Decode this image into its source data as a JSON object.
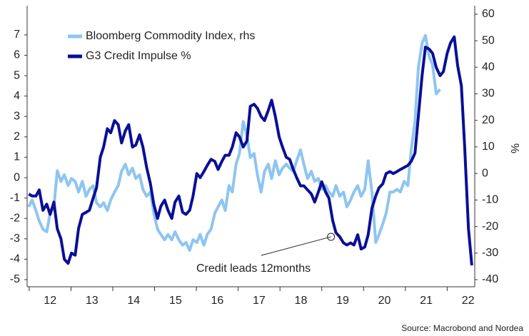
{
  "chart_data": {
    "type": "line",
    "series": [
      {
        "name": "Bloomberg Commodity Index, rhs",
        "color": "#8ec5f0",
        "axis": "y2",
        "values": [
          -12.6,
          -10,
          -14,
          -18,
          -21,
          -22,
          -15,
          -12.6,
          1,
          -3,
          -0.5,
          -4.6,
          -1.9,
          -3,
          -7,
          -3,
          -8.6,
          -6,
          -4.6,
          -11,
          -12.6,
          -11,
          -14,
          -10,
          -7,
          -4.6,
          0.8,
          3.5,
          -0.5,
          2,
          -1.9,
          -0.5,
          -6,
          -8.6,
          -7,
          -15,
          -21,
          -23,
          -25,
          -23,
          -25,
          -22,
          -25,
          -27,
          -26,
          -29,
          -25,
          -26,
          -23,
          -27,
          -23,
          -21,
          -15,
          -12.6,
          -10,
          -14,
          -4.6,
          -7,
          3.5,
          7.5,
          19.6,
          14.2,
          6,
          7.5,
          -0.5,
          -7,
          0.8,
          3.5,
          -1.9,
          4.8,
          -0.5,
          2,
          3.5,
          2,
          0.8,
          4.8,
          8.9,
          3.5,
          -1.9,
          0.8,
          -3,
          -1.9,
          -6,
          -4.6,
          -7,
          -8.6,
          -4.6,
          -8.6,
          -7,
          -12.6,
          -10,
          -7,
          -4.6,
          -8.6,
          -6,
          4.8,
          -7,
          -26,
          -23,
          -19,
          -15,
          -7,
          -7,
          -6,
          -7,
          -3,
          -4.6,
          8.9,
          19.6,
          39.8,
          49,
          52,
          44,
          41,
          30,
          31.7,
          null,
          null,
          null,
          null,
          null,
          null,
          null,
          null,
          null
        ]
      },
      {
        "name": "G3 Credit Impulse %",
        "color": "#0a0f96",
        "axis": "y",
        "values": [
          -0.8,
          -0.9,
          -0.9,
          -0.6,
          -1.6,
          -1.3,
          -1.8,
          -1.2,
          -2.5,
          -3.0,
          -4.0,
          -4.2,
          -3.7,
          -3.8,
          -2.5,
          -1.8,
          -1.7,
          -1.6,
          -1.0,
          -0.5,
          1.0,
          1.5,
          2.4,
          2.2,
          2.8,
          2.6,
          1.7,
          2.3,
          2.6,
          1.5,
          1.6,
          2.1,
          1.5,
          0.5,
          -0.3,
          -1.3,
          -2.0,
          -1.4,
          -1.1,
          -1.6,
          -2.0,
          -1.2,
          -0.9,
          -1.7,
          -1.8,
          -1.6,
          -0.9,
          0.2,
          0.0,
          0.3,
          0.6,
          0.9,
          0.8,
          0.4,
          0.8,
          1.1,
          1.1,
          1.5,
          2.2,
          2.0,
          1.5,
          1.8,
          3.5,
          3.6,
          3.4,
          3.0,
          2.8,
          3.3,
          3.8,
          3.0,
          2.0,
          1.5,
          1.0,
          0.9,
          0.4,
          0.0,
          -0.4,
          -0.4,
          -0.6,
          -0.8,
          -1.2,
          -0.7,
          -0.2,
          -0.7,
          -1.0,
          -2.1,
          -2.7,
          -2.9,
          -3.2,
          -3.3,
          -3.2,
          -3.3,
          -2.8,
          -3.5,
          -3.4,
          -2.8,
          -1.5,
          -0.9,
          -0.5,
          -0.3,
          0.2,
          0.3,
          0.2,
          0.3,
          0.4,
          0.5,
          0.6,
          0.8,
          1.2,
          3.0,
          5.0,
          6.4,
          6.3,
          6.1,
          5.4,
          5.0,
          5.2,
          6.1,
          6.6,
          6.9,
          5.5,
          4.5,
          1.5,
          -2.5,
          -4.3
        ]
      }
    ],
    "x": [
      2011.99,
      2012.07,
      2012.16,
      2012.24,
      2012.33,
      2012.42,
      2012.5,
      2012.59,
      2012.67,
      2012.76,
      2012.84,
      2012.93,
      2013.01,
      2013.1,
      2013.18,
      2013.27,
      2013.36,
      2013.44,
      2013.53,
      2013.61,
      2013.7,
      2013.78,
      2013.87,
      2013.95,
      2014.04,
      2014.13,
      2014.21,
      2014.3,
      2014.38,
      2014.47,
      2014.55,
      2014.64,
      2014.72,
      2014.81,
      2014.9,
      2014.98,
      2015.07,
      2015.15,
      2015.24,
      2015.32,
      2015.41,
      2015.49,
      2015.58,
      2015.67,
      2015.75,
      2015.84,
      2015.92,
      2016.01,
      2016.09,
      2016.18,
      2016.26,
      2016.35,
      2016.44,
      2016.52,
      2016.61,
      2016.69,
      2016.78,
      2016.86,
      2016.95,
      2017.03,
      2017.12,
      2017.21,
      2017.29,
      2017.38,
      2017.46,
      2017.55,
      2017.63,
      2017.72,
      2017.8,
      2017.89,
      2017.98,
      2018.06,
      2018.15,
      2018.23,
      2018.32,
      2018.4,
      2018.49,
      2018.57,
      2018.66,
      2018.75,
      2018.83,
      2018.92,
      2019.0,
      2019.09,
      2019.17,
      2019.26,
      2019.34,
      2019.43,
      2019.52,
      2019.6,
      2019.69,
      2019.77,
      2019.86,
      2019.94,
      2020.03,
      2020.11,
      2020.2,
      2020.29,
      2020.37,
      2020.46,
      2020.54,
      2020.63,
      2020.71,
      2020.8,
      2020.88,
      2020.97,
      2021.06,
      2021.14,
      2021.23,
      2021.31,
      2021.4,
      2021.48,
      2021.57,
      2021.65,
      2021.74,
      2021.83,
      2021.91,
      2022.0,
      2022.08,
      2022.17,
      2022.25,
      2022.34,
      2022.42,
      2022.51,
      2022.59
    ],
    "xlim": [
      2011.95,
      2022.66
    ],
    "xticks": [
      {
        "value": 2012,
        "label": "12"
      },
      {
        "value": 2013,
        "label": "13"
      },
      {
        "value": 2014,
        "label": "14"
      },
      {
        "value": 2015,
        "label": "15"
      },
      {
        "value": 2016,
        "label": "16"
      },
      {
        "value": 2017,
        "label": "17"
      },
      {
        "value": 2018,
        "label": "18"
      },
      {
        "value": 2019,
        "label": "19"
      },
      {
        "value": 2020,
        "label": "20"
      },
      {
        "value": 2021,
        "label": "21"
      },
      {
        "value": 2022,
        "label": "22"
      }
    ],
    "ylim": [
      -5.35,
      8.43
    ],
    "yticks": [
      -5,
      -4,
      -3,
      -2,
      -1,
      0,
      1,
      2,
      3,
      4,
      5,
      6,
      7
    ],
    "y2lim": [
      -42.7,
      63.2
    ],
    "y2ticks": [
      -40,
      -30,
      -20,
      -10,
      0,
      10,
      20,
      30,
      40,
      50,
      60
    ],
    "y2label": "%",
    "legend": "upper left",
    "annotation": {
      "text": "Credit leads 12months",
      "x": 2019.22,
      "y": -2.9
    },
    "source": "Source: Macrobond and Nordea"
  }
}
